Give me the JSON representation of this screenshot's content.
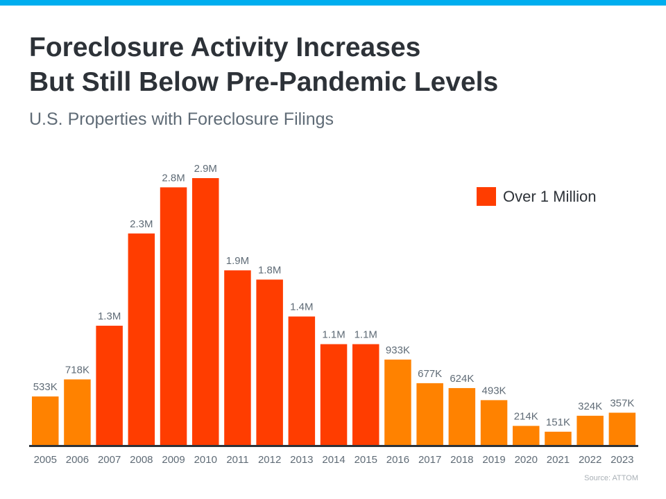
{
  "title_line1": "Foreclosure Activity Increases",
  "title_line2": "But Still Below Pre-Pandemic Levels",
  "subtitle": "U.S. Properties with Foreclosure Filings",
  "source": "Source: ATTOM",
  "colors": {
    "top_bar": "#00AEEF",
    "under_1m": "#FF8200",
    "over_1m": "#FF3D00"
  },
  "chart_data": {
    "type": "bar",
    "title": "Foreclosure Activity Increases But Still Below Pre-Pandemic Levels",
    "subtitle": "U.S. Properties with Foreclosure Filings",
    "categories": [
      "2005",
      "2006",
      "2007",
      "2008",
      "2009",
      "2010",
      "2011",
      "2012",
      "2013",
      "2014",
      "2015",
      "2016",
      "2017",
      "2018",
      "2019",
      "2020",
      "2021",
      "2022",
      "2023"
    ],
    "values": [
      533000,
      718000,
      1300000,
      2300000,
      2800000,
      2900000,
      1900000,
      1800000,
      1400000,
      1100000,
      1100000,
      933000,
      677000,
      624000,
      493000,
      214000,
      151000,
      324000,
      357000
    ],
    "data_labels": [
      "533K",
      "718K",
      "1.3M",
      "2.3M",
      "2.8M",
      "2.9M",
      "1.9M",
      "1.8M",
      "1.4M",
      "1.1M",
      "1.1M",
      "933K",
      "677K",
      "624K",
      "493K",
      "214K",
      "151K",
      "324K",
      "357K"
    ],
    "legend": [
      {
        "name": "Over 1 Million",
        "color": "#FF3D00"
      }
    ],
    "legend_position": "top-right",
    "grid": false,
    "ylim": [
      0,
      2900000
    ]
  }
}
